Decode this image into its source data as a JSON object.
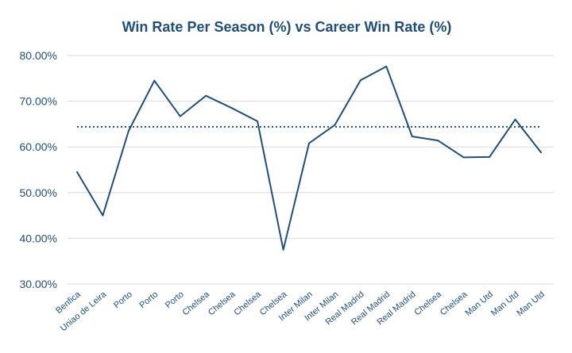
{
  "chart_data": {
    "type": "line",
    "title": "Win Rate Per Season (%) vs Career Win Rate (%)",
    "xlabel": "",
    "ylabel": "",
    "categories": [
      "Benfica",
      "Uniao de Leira",
      "Porto",
      "Porto",
      "Porto",
      "Chelsea",
      "Chelsea",
      "Chelsea",
      "Chelsea",
      "Inter Milan",
      "Inter Milan",
      "Real Madrid",
      "Real Madrid",
      "Real Madrid",
      "Chelsea",
      "Chelsea",
      "Man Utd",
      "Man Utd",
      "Man Utd"
    ],
    "series": [
      {
        "values": [
          54.5,
          45.0,
          63.5,
          74.5,
          66.7,
          71.2,
          68.5,
          65.6,
          37.5,
          60.8,
          64.8,
          74.6,
          77.6,
          62.3,
          61.4,
          57.7,
          57.8,
          66.0,
          58.8
        ]
      },
      {
        "style": "dotted",
        "values": [
          64.4,
          64.4,
          64.4,
          64.4,
          64.4,
          64.4,
          64.4,
          64.4,
          64.4,
          64.4,
          64.4,
          64.4,
          64.4,
          64.4,
          64.4,
          64.4,
          64.4,
          64.4,
          64.4
        ]
      }
    ],
    "yticks": [
      "80.00%",
      "70.00%",
      "60.00%",
      "50.00%",
      "40.00%",
      "30.00%"
    ],
    "ytick_values": [
      80,
      70,
      60,
      50,
      40,
      30
    ],
    "ylim": [
      30,
      80
    ],
    "grid": true,
    "legend": "none",
    "colors": {
      "line": "#1f4e79",
      "title": "#1f4e79",
      "grid": "#d9d9d9"
    }
  }
}
